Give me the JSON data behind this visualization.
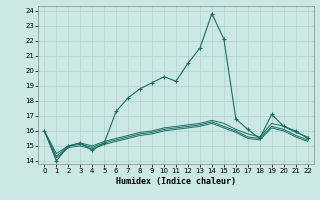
{
  "xlabel": "Humidex (Indice chaleur)",
  "background_color": "#cce8e4",
  "grid_color": "#b0d0cc",
  "line_color": "#1a6e62",
  "xlim": [
    -0.5,
    22.5
  ],
  "ylim": [
    13.8,
    24.3
  ],
  "yticks": [
    14,
    15,
    16,
    17,
    18,
    19,
    20,
    21,
    22,
    23,
    24
  ],
  "xticks": [
    0,
    1,
    2,
    3,
    4,
    5,
    6,
    7,
    8,
    9,
    10,
    11,
    12,
    13,
    14,
    15,
    16,
    17,
    18,
    19,
    20,
    21,
    22
  ],
  "series_main": {
    "x": [
      0,
      1,
      2,
      3,
      4,
      5,
      6,
      7,
      8,
      9,
      10,
      11,
      12,
      13,
      14,
      15,
      16,
      17,
      18,
      19,
      20,
      21,
      22
    ],
    "y": [
      16.0,
      14.0,
      15.0,
      15.2,
      14.7,
      15.2,
      17.3,
      18.2,
      18.8,
      19.2,
      19.6,
      19.3,
      20.5,
      21.5,
      23.8,
      22.1,
      16.8,
      16.1,
      15.5,
      17.1,
      16.3,
      16.0,
      15.5
    ]
  },
  "series_other": [
    {
      "x": [
        0,
        1,
        2,
        3,
        4,
        5,
        6,
        7,
        8,
        9,
        10,
        11,
        12,
        13,
        14,
        15,
        16,
        17,
        18,
        19,
        20,
        21,
        22
      ],
      "y": [
        16.0,
        14.5,
        15.0,
        15.2,
        15.0,
        15.3,
        15.5,
        15.7,
        15.9,
        16.0,
        16.2,
        16.3,
        16.4,
        16.5,
        16.7,
        16.5,
        16.1,
        15.8,
        15.6,
        16.5,
        16.3,
        15.9,
        15.6
      ]
    },
    {
      "x": [
        0,
        1,
        2,
        3,
        4,
        5,
        6,
        7,
        8,
        9,
        10,
        11,
        12,
        13,
        14,
        15,
        16,
        17,
        18,
        19,
        20,
        21,
        22
      ],
      "y": [
        16.0,
        14.3,
        15.0,
        15.1,
        14.9,
        15.2,
        15.4,
        15.6,
        15.8,
        15.9,
        16.1,
        16.2,
        16.3,
        16.4,
        16.6,
        16.3,
        16.0,
        15.6,
        15.5,
        16.3,
        16.1,
        15.7,
        15.4
      ]
    },
    {
      "x": [
        0,
        1,
        2,
        3,
        4,
        5,
        6,
        7,
        8,
        9,
        10,
        11,
        12,
        13,
        14,
        15,
        16,
        17,
        18,
        19,
        20,
        21,
        22
      ],
      "y": [
        16.0,
        14.2,
        14.9,
        15.0,
        14.8,
        15.1,
        15.3,
        15.5,
        15.7,
        15.8,
        16.0,
        16.1,
        16.2,
        16.3,
        16.5,
        16.2,
        15.9,
        15.5,
        15.4,
        16.2,
        16.0,
        15.6,
        15.3
      ]
    }
  ]
}
